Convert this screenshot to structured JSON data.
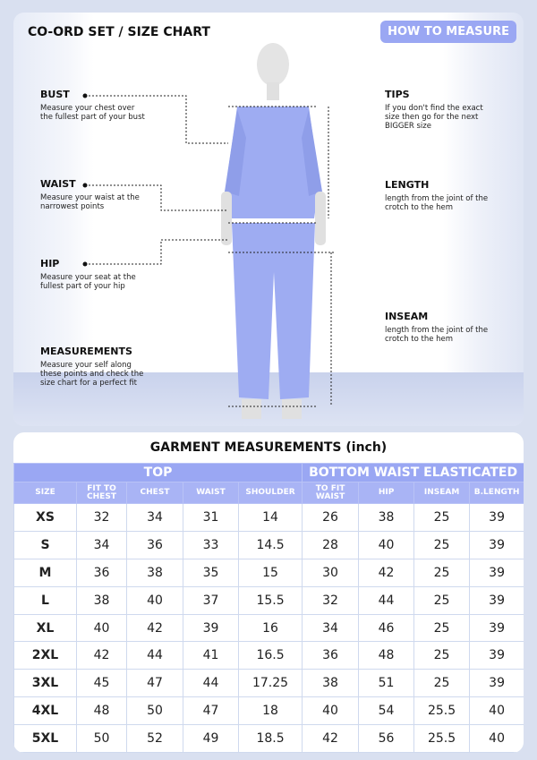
{
  "header": {
    "title": "CO-ORD SET / SIZE CHART",
    "how_to_measure": "HOW TO MEASURE"
  },
  "guides": {
    "bust": {
      "title": "BUST",
      "text": "Measure your chest over the fullest part of your bust"
    },
    "waist": {
      "title": "WAIST",
      "text": "Measure your waist at the narrowest points"
    },
    "hip": {
      "title": "HIP",
      "text": "Measure your seat at the fullest part of your hip"
    },
    "measurements": {
      "title": "MEASUREMENTS",
      "text": "Measure your self along these points and check the size chart for a perfect fit"
    },
    "tips": {
      "title": "TIPS",
      "text": "If you don't find the exact size then go for the next BIGGER size"
    },
    "length": {
      "title": "LENGTH",
      "text": "length from the joint of the crotch to the hem"
    },
    "inseam": {
      "title": "INSEAM",
      "text": "length from the joint of the crotch to the hem"
    }
  },
  "colors": {
    "accent": "#9aa7f3",
    "garment": "#9eacf2"
  },
  "table": {
    "title": "GARMENT MEASUREMENTS (inch)",
    "groups": [
      "TOP",
      "BOTTOM WAIST ELASTICATED"
    ],
    "columns": [
      "SIZE",
      "FIT TO CHEST",
      "CHEST",
      "WAIST",
      "SHOULDER",
      "TO FIT WAIST",
      "HIP",
      "INSEAM",
      "B.LENGTH"
    ],
    "rows": [
      [
        "XS",
        "32",
        "34",
        "31",
        "14",
        "26",
        "38",
        "25",
        "39"
      ],
      [
        "S",
        "34",
        "36",
        "33",
        "14.5",
        "28",
        "40",
        "25",
        "39"
      ],
      [
        "M",
        "36",
        "38",
        "35",
        "15",
        "30",
        "42",
        "25",
        "39"
      ],
      [
        "L",
        "38",
        "40",
        "37",
        "15.5",
        "32",
        "44",
        "25",
        "39"
      ],
      [
        "XL",
        "40",
        "42",
        "39",
        "16",
        "34",
        "46",
        "25",
        "39"
      ],
      [
        "2XL",
        "42",
        "44",
        "41",
        "16.5",
        "36",
        "48",
        "25",
        "39"
      ],
      [
        "3XL",
        "45",
        "47",
        "44",
        "17.25",
        "38",
        "51",
        "25",
        "39"
      ],
      [
        "4XL",
        "48",
        "50",
        "47",
        "18",
        "40",
        "54",
        "25.5",
        "40"
      ],
      [
        "5XL",
        "50",
        "52",
        "49",
        "18.5",
        "42",
        "56",
        "25.5",
        "40"
      ]
    ]
  }
}
